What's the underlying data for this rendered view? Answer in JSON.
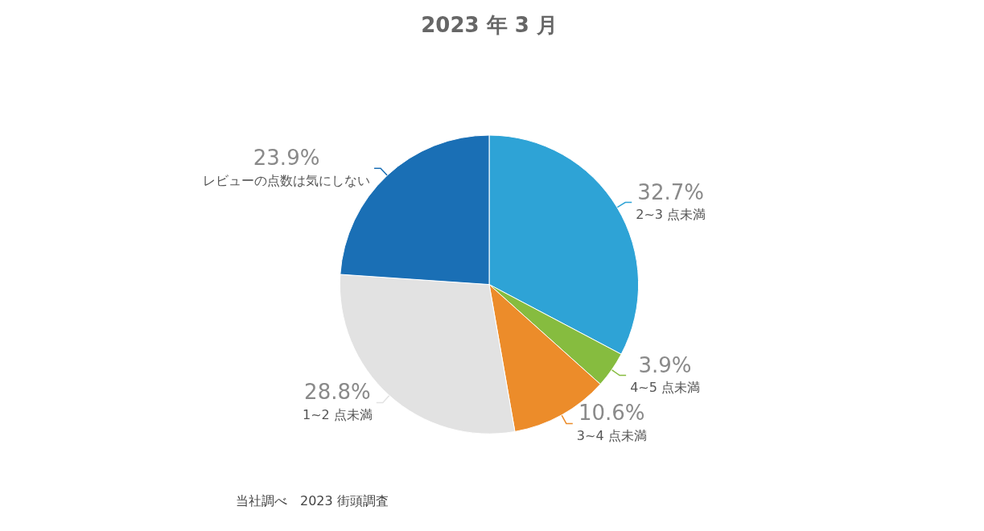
{
  "chart_data": {
    "type": "pie",
    "title": "2023 年 3 月",
    "categories": [
      "2~3 点未満",
      "4~5 点未満",
      "3~4 点未満",
      "1~2 点未満",
      "レビューの点数は気にしない"
    ],
    "values": [
      32.7,
      3.9,
      10.6,
      28.8,
      23.9
    ],
    "value_labels": [
      "32.7%",
      "3.9%",
      "10.6%",
      "28.8%",
      "23.9%"
    ],
    "colors": [
      "#2ea3d6",
      "#86bc3f",
      "#ec8c2a",
      "#e2e2e2",
      "#1a6fb5"
    ],
    "legend": false,
    "annotations": [
      "当社調べ　2023 街頭調査"
    ]
  }
}
